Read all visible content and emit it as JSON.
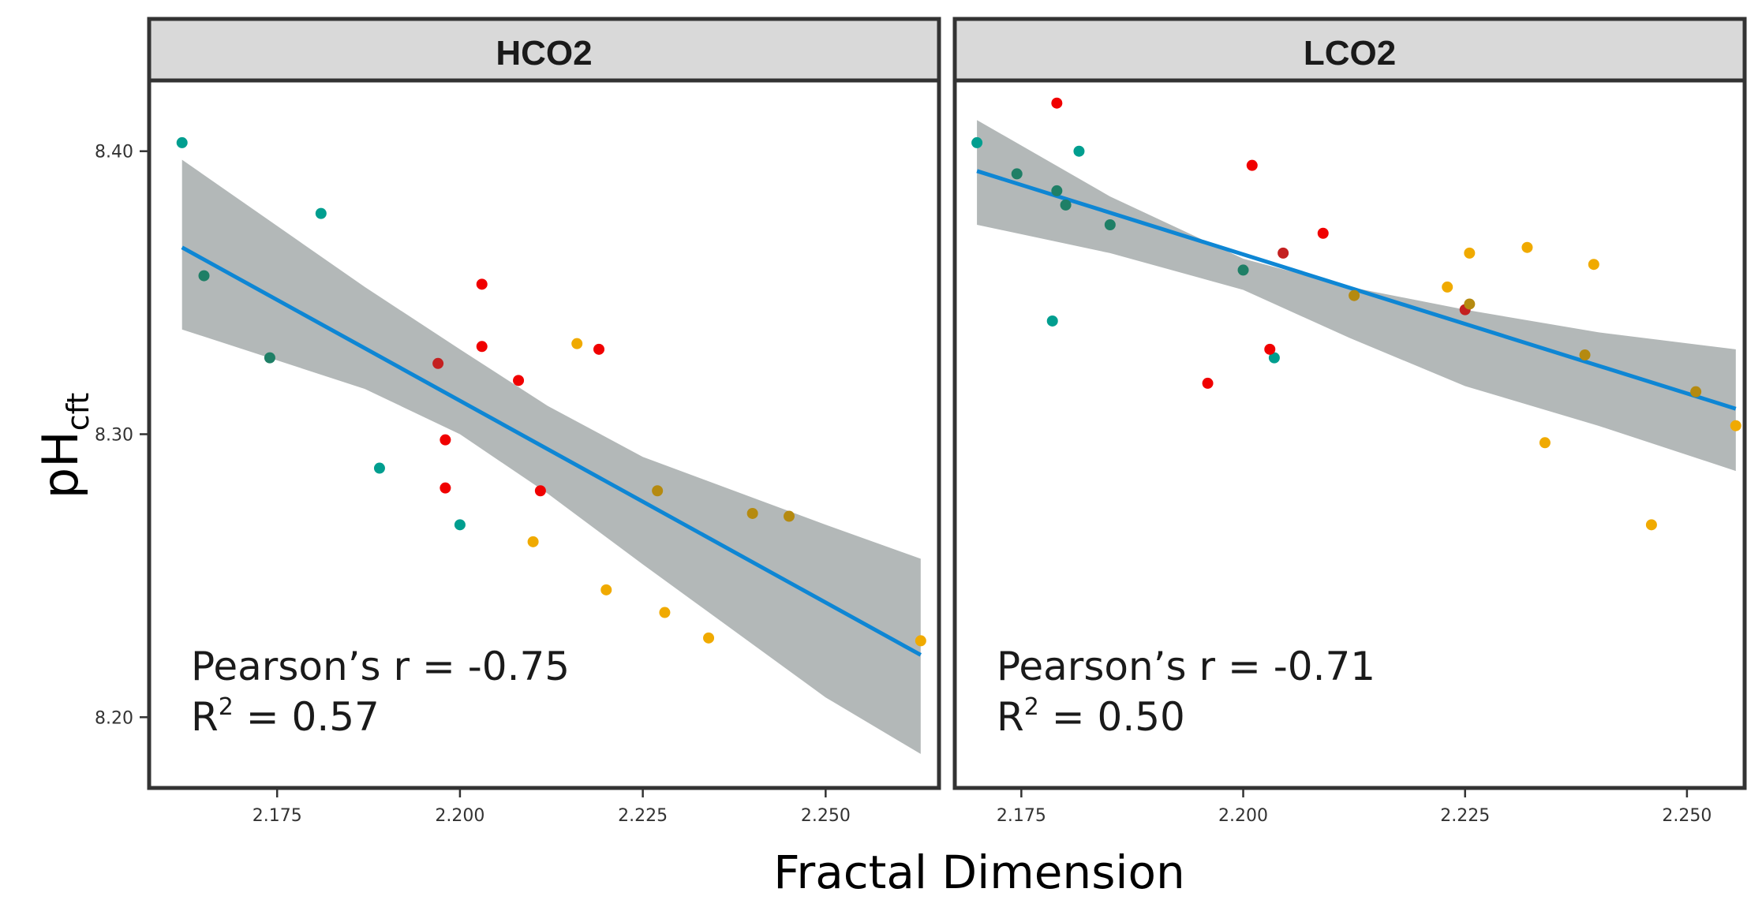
{
  "chart_data": {
    "type": "scatter",
    "x_label": "Fractal Dimension",
    "y_label": "pH",
    "y_label_subscript": "cft",
    "y_lim": [
      8.175,
      8.425
    ],
    "y_ticks": [
      8.2,
      8.3,
      8.4
    ],
    "y_tick_labels": [
      "8.20",
      "8.30",
      "8.40"
    ],
    "grid": false,
    "colors": {
      "teal": "#009E8F",
      "darkteal": "#1F7F66",
      "red": "#F00000",
      "darkred": "#C42020",
      "orange": "#F0AA00",
      "darkorange": "#B58A10",
      "fit": "#0E86D4",
      "band": "#B3B8B8",
      "strip": "#D9D9D9",
      "frame": "#333333"
    },
    "panels": [
      {
        "label": "HCO2",
        "x_lim": [
          2.1575,
          2.2655
        ],
        "x_ticks": [
          2.175,
          2.2,
          2.225,
          2.25
        ],
        "x_tick_labels": [
          "2.175",
          "2.200",
          "2.225",
          "2.250"
        ],
        "annotation_r": "Pearson’s r = -0.75",
        "annotation_r2_prefix": "R",
        "annotation_r2_sup": "2",
        "annotation_r2_value": " = 0.57",
        "fit": {
          "x": [
            2.162,
            2.263
          ],
          "y": [
            8.366,
            8.222
          ]
        },
        "band_upper": [
          [
            2.162,
            8.397
          ],
          [
            2.187,
            8.352
          ],
          [
            2.2,
            8.33
          ],
          [
            2.212,
            8.31
          ],
          [
            2.225,
            8.292
          ],
          [
            2.25,
            8.268
          ],
          [
            2.263,
            8.256
          ]
        ],
        "band_lower": [
          [
            2.162,
            8.337
          ],
          [
            2.187,
            8.316
          ],
          [
            2.2,
            8.3
          ],
          [
            2.212,
            8.279
          ],
          [
            2.225,
            8.254
          ],
          [
            2.25,
            8.207
          ],
          [
            2.263,
            8.187
          ]
        ],
        "points": [
          {
            "x": 2.162,
            "y": 8.403,
            "c": "teal"
          },
          {
            "x": 2.165,
            "y": 8.356,
            "c": "darkteal"
          },
          {
            "x": 2.174,
            "y": 8.327,
            "c": "darkteal"
          },
          {
            "x": 2.181,
            "y": 8.378,
            "c": "teal"
          },
          {
            "x": 2.189,
            "y": 8.288,
            "c": "teal"
          },
          {
            "x": 2.2,
            "y": 8.268,
            "c": "teal"
          },
          {
            "x": 2.197,
            "y": 8.325,
            "c": "darkred"
          },
          {
            "x": 2.198,
            "y": 8.298,
            "c": "red"
          },
          {
            "x": 2.198,
            "y": 8.281,
            "c": "red"
          },
          {
            "x": 2.203,
            "y": 8.353,
            "c": "red"
          },
          {
            "x": 2.203,
            "y": 8.331,
            "c": "red"
          },
          {
            "x": 2.208,
            "y": 8.319,
            "c": "red"
          },
          {
            "x": 2.211,
            "y": 8.28,
            "c": "red"
          },
          {
            "x": 2.219,
            "y": 8.33,
            "c": "red"
          },
          {
            "x": 2.216,
            "y": 8.332,
            "c": "orange"
          },
          {
            "x": 2.21,
            "y": 8.262,
            "c": "orange"
          },
          {
            "x": 2.22,
            "y": 8.245,
            "c": "orange"
          },
          {
            "x": 2.227,
            "y": 8.28,
            "c": "darkorange"
          },
          {
            "x": 2.228,
            "y": 8.237,
            "c": "orange"
          },
          {
            "x": 2.234,
            "y": 8.228,
            "c": "orange"
          },
          {
            "x": 2.24,
            "y": 8.272,
            "c": "darkorange"
          },
          {
            "x": 2.245,
            "y": 8.271,
            "c": "darkorange"
          },
          {
            "x": 2.263,
            "y": 8.227,
            "c": "orange"
          }
        ]
      },
      {
        "label": "LCO2",
        "x_lim": [
          2.1675,
          2.2565
        ],
        "x_ticks": [
          2.175,
          2.2,
          2.225,
          2.25
        ],
        "x_tick_labels": [
          "2.175",
          "2.200",
          "2.225",
          "2.250"
        ],
        "annotation_r": "Pearson’s r = -0.71",
        "annotation_r2_prefix": "R",
        "annotation_r2_sup": "2",
        "annotation_r2_value": " = 0.50",
        "fit": {
          "x": [
            2.17,
            2.2555
          ],
          "y": [
            8.393,
            8.309
          ]
        },
        "band_upper": [
          [
            2.17,
            8.411
          ],
          [
            2.185,
            8.384
          ],
          [
            2.2,
            8.362
          ],
          [
            2.212,
            8.352
          ],
          [
            2.225,
            8.344
          ],
          [
            2.24,
            8.336
          ],
          [
            2.2555,
            8.33
          ]
        ],
        "band_lower": [
          [
            2.17,
            8.374
          ],
          [
            2.185,
            8.364
          ],
          [
            2.2,
            8.351
          ],
          [
            2.212,
            8.334
          ],
          [
            2.225,
            8.317
          ],
          [
            2.24,
            8.303
          ],
          [
            2.2555,
            8.287
          ]
        ],
        "points": [
          {
            "x": 2.17,
            "y": 8.403,
            "c": "teal"
          },
          {
            "x": 2.1745,
            "y": 8.392,
            "c": "darkteal"
          },
          {
            "x": 2.179,
            "y": 8.417,
            "c": "red"
          },
          {
            "x": 2.179,
            "y": 8.386,
            "c": "darkteal"
          },
          {
            "x": 2.18,
            "y": 8.381,
            "c": "darkteal"
          },
          {
            "x": 2.1815,
            "y": 8.4,
            "c": "teal"
          },
          {
            "x": 2.1785,
            "y": 8.34,
            "c": "teal"
          },
          {
            "x": 2.185,
            "y": 8.374,
            "c": "darkteal"
          },
          {
            "x": 2.2,
            "y": 8.358,
            "c": "darkteal"
          },
          {
            "x": 2.2035,
            "y": 8.327,
            "c": "teal"
          },
          {
            "x": 2.201,
            "y": 8.395,
            "c": "red"
          },
          {
            "x": 2.2045,
            "y": 8.364,
            "c": "darkred"
          },
          {
            "x": 2.209,
            "y": 8.371,
            "c": "red"
          },
          {
            "x": 2.203,
            "y": 8.33,
            "c": "red"
          },
          {
            "x": 2.196,
            "y": 8.318,
            "c": "red"
          },
          {
            "x": 2.2125,
            "y": 8.349,
            "c": "darkorange"
          },
          {
            "x": 2.223,
            "y": 8.352,
            "c": "orange"
          },
          {
            "x": 2.225,
            "y": 8.344,
            "c": "darkred"
          },
          {
            "x": 2.2255,
            "y": 8.346,
            "c": "darkorange"
          },
          {
            "x": 2.2255,
            "y": 8.364,
            "c": "orange"
          },
          {
            "x": 2.232,
            "y": 8.366,
            "c": "orange"
          },
          {
            "x": 2.234,
            "y": 8.297,
            "c": "orange"
          },
          {
            "x": 2.2385,
            "y": 8.328,
            "c": "darkorange"
          },
          {
            "x": 2.2395,
            "y": 8.36,
            "c": "orange"
          },
          {
            "x": 2.246,
            "y": 8.268,
            "c": "orange"
          },
          {
            "x": 2.251,
            "y": 8.315,
            "c": "darkorange"
          },
          {
            "x": 2.2555,
            "y": 8.303,
            "c": "orange"
          }
        ]
      }
    ]
  }
}
